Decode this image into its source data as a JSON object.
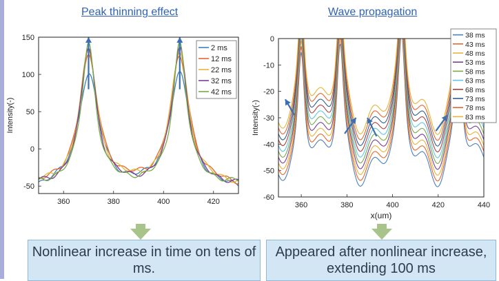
{
  "panels": {
    "left": {
      "title": "Peak thinning effect",
      "note": "Nonlinear increase in time on tens of ms."
    },
    "right": {
      "title": "Wave propagation",
      "note": "Appeared after nonlinear increase, extending 100 ms"
    }
  },
  "chart_data": [
    {
      "type": "line",
      "title": "Peak thinning effect",
      "xlabel": "",
      "ylabel": "Intensity(-)",
      "xlim": [
        350,
        430
      ],
      "ylim": [
        -60,
        150
      ],
      "xticks": [
        360,
        380,
        400,
        420
      ],
      "yticks": [
        -50,
        0,
        50,
        100,
        150
      ],
      "legend_position": "top-right",
      "series": [
        {
          "name": "2 ms",
          "color": "#3f7fbf",
          "peak": 97,
          "base": -56
        },
        {
          "name": "12 ms",
          "color": "#e8652c",
          "peak": 120,
          "base": -51
        },
        {
          "name": "22 ms",
          "color": "#e7b437",
          "peak": 130,
          "base": -49
        },
        {
          "name": "32 ms",
          "color": "#7a3c96",
          "peak": 136,
          "base": -49
        },
        {
          "name": "42 ms",
          "color": "#77ab45",
          "peak": 142,
          "base": -47
        }
      ],
      "annotations": [
        "up-arrow at x=370",
        "up-arrow at x=406"
      ]
    },
    {
      "type": "line",
      "title": "Wave propagation",
      "xlabel": "x(um)",
      "ylabel": "Intensity(-)",
      "xlim": [
        350,
        440
      ],
      "ylim": [
        -60,
        0
      ],
      "xticks": [
        360,
        380,
        400,
        420,
        440
      ],
      "yticks": [
        -60,
        -50,
        -40,
        -30,
        -20,
        -10,
        0
      ],
      "legend_position": "top-right",
      "series": [
        {
          "name": "38 ms",
          "color": "#4a7fc0"
        },
        {
          "name": "43 ms",
          "color": "#e8652c"
        },
        {
          "name": "48 ms",
          "color": "#e7b437"
        },
        {
          "name": "53 ms",
          "color": "#7a3c96"
        },
        {
          "name": "58 ms",
          "color": "#77ab45"
        },
        {
          "name": "63 ms",
          "color": "#5fc5e8"
        },
        {
          "name": "68 ms",
          "color": "#b0403a"
        },
        {
          "name": "73 ms",
          "color": "#2c5f8f"
        },
        {
          "name": "78 ms",
          "color": "#e8652c"
        },
        {
          "name": "83 ms",
          "color": "#e7b437"
        }
      ],
      "annotations": [
        "arrow at x=355",
        "arrow at x=385",
        "arrow at x=392",
        "arrow at x=422"
      ]
    }
  ]
}
